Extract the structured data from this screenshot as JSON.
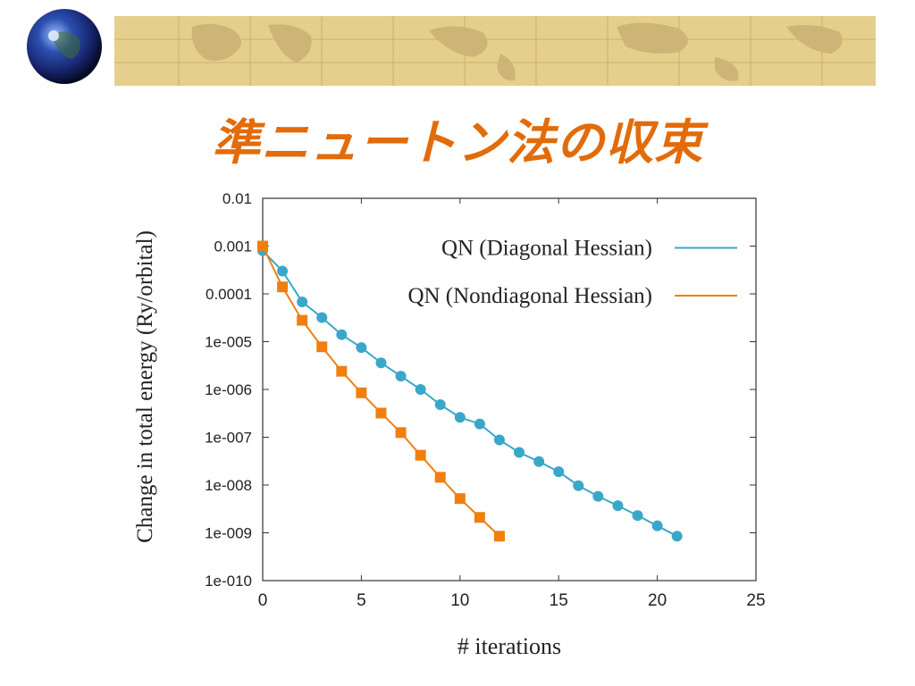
{
  "slide": {
    "title": "準ニュートン法の収束"
  },
  "colors": {
    "title": "#e26b0a",
    "banner_fill": "#e5cf8c",
    "series_diagonal": "#3aa7c9",
    "series_nondiagonal": "#f07f0e"
  },
  "chart_data": {
    "type": "line",
    "title": "",
    "xlabel": "# iterations",
    "ylabel": "Change in total energy (Ry/orbital)",
    "xlim": [
      0,
      25
    ],
    "ylim": [
      1e-10,
      0.01
    ],
    "yscale": "log",
    "grid": false,
    "legend_position": "top-right",
    "x_ticks": [
      0,
      5,
      10,
      15,
      20,
      25
    ],
    "x_tick_labels": [
      "0",
      "5",
      "10",
      "15",
      "20",
      "25"
    ],
    "y_ticks": [
      0.01,
      0.001,
      0.0001,
      1e-05,
      1e-06,
      1e-07,
      1e-08,
      1e-09,
      1e-10
    ],
    "y_tick_labels": [
      "0.01",
      "0.001",
      "0.0001",
      "1e-005",
      "1e-006",
      "1e-007",
      "1e-008",
      "1e-009",
      "1e-010"
    ],
    "series": [
      {
        "name": "QN (Diagonal Hessian)",
        "marker": "circle",
        "color": "#3aa7c9",
        "x": [
          0,
          1,
          2,
          3,
          4,
          5,
          6,
          7,
          8,
          9,
          10,
          11,
          12,
          13,
          14,
          15,
          16,
          17,
          18,
          19,
          20,
          21
        ],
        "y": [
          0.0008,
          0.0003,
          6.8e-05,
          3.2e-05,
          1.4e-05,
          7.5e-06,
          3.6e-06,
          1.9e-06,
          1e-06,
          4.8e-07,
          2.6e-07,
          1.9e-07,
          8.8e-08,
          4.8e-08,
          3.1e-08,
          1.9e-08,
          9.7e-09,
          5.8e-09,
          3.7e-09,
          2.3e-09,
          1.4e-09,
          8.5e-10
        ]
      },
      {
        "name": "QN (Nondiagonal Hessian)",
        "marker": "square",
        "color": "#f07f0e",
        "x": [
          0,
          1,
          2,
          3,
          4,
          5,
          6,
          7,
          8,
          9,
          10,
          11,
          12
        ],
        "y": [
          0.001,
          0.00014,
          2.8e-05,
          7.8e-06,
          2.4e-06,
          8.5e-07,
          3.2e-07,
          1.25e-07,
          4.2e-08,
          1.45e-08,
          5.2e-09,
          2.1e-09,
          8.5e-10
        ]
      }
    ]
  }
}
